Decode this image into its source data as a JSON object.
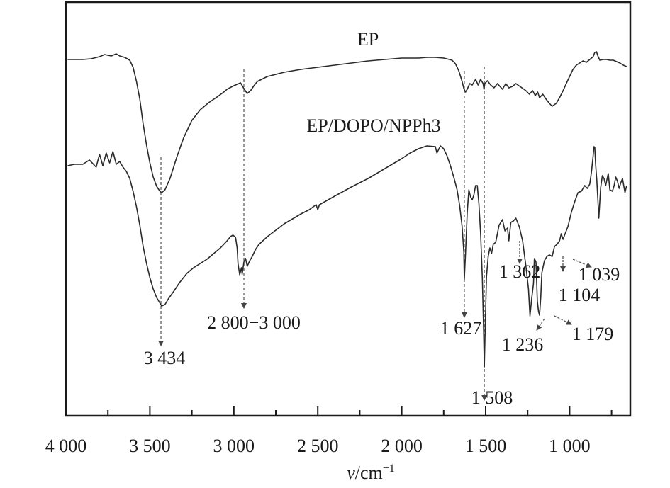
{
  "chart_data": {
    "type": "line",
    "xlabel_var": "ν",
    "xlabel_unit": "/cm",
    "xlabel_exp": "−1",
    "xlim": [
      4000,
      650
    ],
    "x_reversed": true,
    "ylabel": "",
    "grid": false,
    "legend": "none",
    "ticks": [
      {
        "value": 4000,
        "label": "4 000"
      },
      {
        "value": 3500,
        "label": "3 500"
      },
      {
        "value": 3000,
        "label": "3 000"
      },
      {
        "value": 2500,
        "label": "2 500"
      },
      {
        "value": 2000,
        "label": "2 000"
      },
      {
        "value": 1500,
        "label": "1 500"
      },
      {
        "value": 1000,
        "label": "1 000"
      }
    ],
    "series": [
      {
        "name": "EP",
        "color": "#2a2a2a",
        "points": [
          [
            3990,
            84
          ],
          [
            3900,
            84
          ],
          [
            3850,
            83
          ],
          [
            3800,
            80
          ],
          [
            3770,
            77
          ],
          [
            3730,
            79
          ],
          [
            3700,
            76
          ],
          [
            3680,
            79
          ],
          [
            3650,
            81
          ],
          [
            3620,
            85
          ],
          [
            3600,
            95
          ],
          [
            3580,
            115
          ],
          [
            3560,
            140
          ],
          [
            3540,
            175
          ],
          [
            3520,
            205
          ],
          [
            3500,
            230
          ],
          [
            3480,
            250
          ],
          [
            3460,
            263
          ],
          [
            3440,
            270
          ],
          [
            3430,
            272
          ],
          [
            3410,
            268
          ],
          [
            3380,
            252
          ],
          [
            3340,
            222
          ],
          [
            3300,
            195
          ],
          [
            3250,
            170
          ],
          [
            3200,
            155
          ],
          [
            3150,
            145
          ],
          [
            3100,
            137
          ],
          [
            3060,
            130
          ],
          [
            3040,
            126
          ],
          [
            3000,
            121
          ],
          [
            2960,
            117
          ],
          [
            2940,
            125
          ],
          [
            2920,
            132
          ],
          [
            2900,
            128
          ],
          [
            2880,
            121
          ],
          [
            2860,
            115
          ],
          [
            2800,
            108
          ],
          [
            2700,
            102
          ],
          [
            2600,
            98
          ],
          [
            2500,
            95
          ],
          [
            2400,
            92
          ],
          [
            2300,
            89
          ],
          [
            2200,
            86
          ],
          [
            2100,
            84
          ],
          [
            2000,
            82
          ],
          [
            1900,
            82
          ],
          [
            1850,
            81
          ],
          [
            1800,
            81
          ],
          [
            1750,
            82
          ],
          [
            1700,
            85
          ],
          [
            1680,
            90
          ],
          [
            1660,
            100
          ],
          [
            1640,
            115
          ],
          [
            1630,
            125
          ],
          [
            1620,
            130
          ],
          [
            1610,
            126
          ],
          [
            1595,
            118
          ],
          [
            1580,
            120
          ],
          [
            1560,
            112
          ],
          [
            1545,
            120
          ],
          [
            1530,
            112
          ],
          [
            1515,
            118
          ],
          [
            1510,
            126
          ],
          [
            1505,
            118
          ],
          [
            1490,
            114
          ],
          [
            1470,
            120
          ],
          [
            1450,
            124
          ],
          [
            1430,
            118
          ],
          [
            1400,
            126
          ],
          [
            1380,
            118
          ],
          [
            1362,
            124
          ],
          [
            1340,
            122
          ],
          [
            1320,
            118
          ],
          [
            1290,
            123
          ],
          [
            1260,
            128
          ],
          [
            1240,
            133
          ],
          [
            1220,
            128
          ],
          [
            1205,
            135
          ],
          [
            1190,
            130
          ],
          [
            1179,
            138
          ],
          [
            1160,
            133
          ],
          [
            1140,
            140
          ],
          [
            1120,
            146
          ],
          [
            1104,
            150
          ],
          [
            1080,
            146
          ],
          [
            1060,
            138
          ],
          [
            1039,
            128
          ],
          [
            1020,
            118
          ],
          [
            1000,
            108
          ],
          [
            980,
            98
          ],
          [
            960,
            92
          ],
          [
            940,
            89
          ],
          [
            920,
            86
          ],
          [
            900,
            88
          ],
          [
            880,
            84
          ],
          [
            860,
            80
          ],
          [
            850,
            74
          ],
          [
            840,
            73
          ],
          [
            830,
            80
          ],
          [
            820,
            85
          ],
          [
            800,
            84
          ],
          [
            780,
            84
          ],
          [
            760,
            85
          ],
          [
            740,
            85
          ],
          [
            720,
            87
          ],
          [
            700,
            89
          ],
          [
            680,
            92
          ],
          [
            660,
            94
          ]
        ]
      },
      {
        "name": "EP/DOPO/NPPh3",
        "color": "#2a2a2a",
        "points": [
          [
            3990,
            234
          ],
          [
            3950,
            232
          ],
          [
            3900,
            232
          ],
          [
            3860,
            226
          ],
          [
            3820,
            236
          ],
          [
            3800,
            218
          ],
          [
            3780,
            234
          ],
          [
            3760,
            216
          ],
          [
            3740,
            230
          ],
          [
            3720,
            214
          ],
          [
            3700,
            232
          ],
          [
            3680,
            228
          ],
          [
            3660,
            236
          ],
          [
            3640,
            242
          ],
          [
            3620,
            252
          ],
          [
            3600,
            270
          ],
          [
            3580,
            292
          ],
          [
            3560,
            318
          ],
          [
            3540,
            348
          ],
          [
            3520,
            372
          ],
          [
            3500,
            392
          ],
          [
            3480,
            408
          ],
          [
            3460,
            420
          ],
          [
            3440,
            428
          ],
          [
            3430,
            432
          ],
          [
            3410,
            430
          ],
          [
            3390,
            422
          ],
          [
            3360,
            412
          ],
          [
            3320,
            398
          ],
          [
            3280,
            386
          ],
          [
            3240,
            378
          ],
          [
            3200,
            372
          ],
          [
            3160,
            366
          ],
          [
            3120,
            358
          ],
          [
            3080,
            350
          ],
          [
            3040,
            340
          ],
          [
            3020,
            334
          ],
          [
            3005,
            332
          ],
          [
            2990,
            335
          ],
          [
            2980,
            350
          ],
          [
            2975,
            372
          ],
          [
            2965,
            388
          ],
          [
            2955,
            378
          ],
          [
            2950,
            387
          ],
          [
            2940,
            370
          ],
          [
            2930,
            365
          ],
          [
            2920,
            376
          ],
          [
            2905,
            368
          ],
          [
            2890,
            362
          ],
          [
            2870,
            352
          ],
          [
            2850,
            345
          ],
          [
            2800,
            334
          ],
          [
            2700,
            316
          ],
          [
            2600,
            302
          ],
          [
            2550,
            296
          ],
          [
            2510,
            289
          ],
          [
            2500,
            296
          ],
          [
            2490,
            289
          ],
          [
            2400,
            277
          ],
          [
            2300,
            264
          ],
          [
            2200,
            252
          ],
          [
            2100,
            238
          ],
          [
            2000,
            224
          ],
          [
            1950,
            216
          ],
          [
            1900,
            210
          ],
          [
            1850,
            206
          ],
          [
            1800,
            207
          ],
          [
            1790,
            216
          ],
          [
            1770,
            206
          ],
          [
            1750,
            210
          ],
          [
            1730,
            220
          ],
          [
            1710,
            234
          ],
          [
            1690,
            250
          ],
          [
            1670,
            268
          ],
          [
            1655,
            290
          ],
          [
            1640,
            320
          ],
          [
            1630,
            356
          ],
          [
            1627,
            394
          ],
          [
            1620,
            358
          ],
          [
            1610,
            300
          ],
          [
            1600,
            268
          ],
          [
            1590,
            278
          ],
          [
            1580,
            282
          ],
          [
            1570,
            275
          ],
          [
            1560,
            262
          ],
          [
            1550,
            262
          ],
          [
            1540,
            288
          ],
          [
            1530,
            330
          ],
          [
            1520,
            392
          ],
          [
            1512,
            470
          ],
          [
            1508,
            518
          ],
          [
            1503,
            465
          ],
          [
            1495,
            390
          ],
          [
            1485,
            362
          ],
          [
            1475,
            350
          ],
          [
            1465,
            358
          ],
          [
            1455,
            345
          ],
          [
            1440,
            342
          ],
          [
            1420,
            318
          ],
          [
            1400,
            310
          ],
          [
            1385,
            326
          ],
          [
            1370,
            322
          ],
          [
            1362,
            340
          ],
          [
            1350,
            314
          ],
          [
            1335,
            312
          ],
          [
            1320,
            308
          ],
          [
            1300,
            320
          ],
          [
            1280,
            340
          ],
          [
            1260,
            376
          ],
          [
            1245,
            408
          ],
          [
            1236,
            446
          ],
          [
            1225,
            420
          ],
          [
            1215,
            400
          ],
          [
            1210,
            365
          ],
          [
            1200,
            370
          ],
          [
            1192,
            425
          ],
          [
            1185,
            440
          ],
          [
            1179,
            445
          ],
          [
            1172,
            420
          ],
          [
            1165,
            385
          ],
          [
            1150,
            368
          ],
          [
            1135,
            362
          ],
          [
            1120,
            360
          ],
          [
            1104,
            362
          ],
          [
            1090,
            348
          ],
          [
            1075,
            345
          ],
          [
            1060,
            340
          ],
          [
            1050,
            330
          ],
          [
            1039,
            338
          ],
          [
            1030,
            332
          ],
          [
            1010,
            320
          ],
          [
            990,
            300
          ],
          [
            970,
            285
          ],
          [
            950,
            272
          ],
          [
            930,
            270
          ],
          [
            910,
            262
          ],
          [
            895,
            266
          ],
          [
            880,
            260
          ],
          [
            870,
            243
          ],
          [
            860,
            220
          ],
          [
            855,
            207
          ],
          [
            850,
            208
          ],
          [
            845,
            232
          ],
          [
            838,
            255
          ],
          [
            830,
            290
          ],
          [
            826,
            308
          ],
          [
            820,
            285
          ],
          [
            815,
            265
          ],
          [
            805,
            248
          ],
          [
            795,
            252
          ],
          [
            785,
            262
          ],
          [
            770,
            245
          ],
          [
            760,
            268
          ],
          [
            745,
            270
          ],
          [
            735,
            262
          ],
          [
            725,
            250
          ],
          [
            715,
            256
          ],
          [
            705,
            266
          ],
          [
            695,
            258
          ],
          [
            685,
            252
          ],
          [
            670,
            272
          ],
          [
            660,
            262
          ]
        ]
      }
    ],
    "labels": [
      {
        "text": "EP",
        "value": 1600
      },
      {
        "text": "EP/DOPO/NPPh3",
        "value": 1600
      }
    ],
    "annotations": [
      {
        "text": "3 434",
        "value": 3434
      },
      {
        "text": "2 800−3 000",
        "value": 2940
      },
      {
        "text": "1 627",
        "value": 1627
      },
      {
        "text": "1 508",
        "value": 1508
      },
      {
        "text": "1 362",
        "value": 1362
      },
      {
        "text": "1 236",
        "value": 1236
      },
      {
        "text": "1 179",
        "value": 1179
      },
      {
        "text": "1 104",
        "value": 1104
      },
      {
        "text": "1 039",
        "value": 1039
      }
    ]
  }
}
